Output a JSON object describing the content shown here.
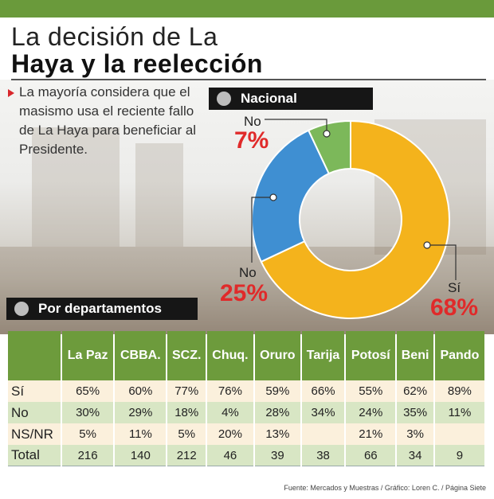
{
  "header": {
    "title_line1": "La decisión de La",
    "title_line2": "Haya y la reelección",
    "lead": "La mayoría considera que el masismo usa el reciente fallo de La Haya para beneficiar al Presidente."
  },
  "colors": {
    "accent": "#6d9b3c",
    "highlight": "#e02a2a",
    "si": "#f4b31c",
    "no_blue": "#3f8fd2",
    "no_green": "#7cb85a"
  },
  "nacional": {
    "label": "Nacional",
    "slices": [
      {
        "label": "Sí",
        "value": 68,
        "pct_text": "68%",
        "color": "#f4b31c"
      },
      {
        "label": "No",
        "value": 25,
        "pct_text": "25%",
        "color": "#3f8fd2"
      },
      {
        "label": "No",
        "value": 7,
        "pct_text": "7%",
        "color": "#7cb85a"
      }
    ]
  },
  "por_departamentos": {
    "label": "Por departamentos",
    "columns": [
      "La Paz",
      "CBBA.",
      "SCZ.",
      "Chuq.",
      "Oruro",
      "Tarija",
      "Potosí",
      "Beni",
      "Pando"
    ],
    "rows": [
      {
        "label": "Sí",
        "values": [
          "65%",
          "60%",
          "77%",
          "76%",
          "59%",
          "66%",
          "55%",
          "62%",
          "89%"
        ]
      },
      {
        "label": "No",
        "values": [
          "30%",
          "29%",
          "18%",
          "4%",
          "28%",
          "34%",
          "24%",
          "35%",
          "11%"
        ]
      },
      {
        "label": "NS/NR",
        "values": [
          "5%",
          "11%",
          "5%",
          "20%",
          "13%",
          "",
          "21%",
          "3%",
          ""
        ]
      },
      {
        "label": "Total",
        "values": [
          "216",
          "140",
          "212",
          "46",
          "39",
          "38",
          "66",
          "34",
          "9"
        ]
      }
    ]
  },
  "chart_data": [
    {
      "type": "pie",
      "title": "Nacional",
      "categories": [
        "Sí",
        "No",
        "No"
      ],
      "values": [
        68,
        25,
        7
      ],
      "colors": [
        "#f4b31c",
        "#3f8fd2",
        "#7cb85a"
      ]
    },
    {
      "type": "table",
      "title": "Por departamentos",
      "categories": [
        "La Paz",
        "CBBA.",
        "SCZ.",
        "Chuq.",
        "Oruro",
        "Tarija",
        "Potosí",
        "Beni",
        "Pando"
      ],
      "series": [
        {
          "name": "Sí",
          "values": [
            65,
            60,
            77,
            76,
            59,
            66,
            55,
            62,
            89
          ]
        },
        {
          "name": "No",
          "values": [
            30,
            29,
            18,
            4,
            28,
            34,
            24,
            35,
            11
          ]
        },
        {
          "name": "NS/NR",
          "values": [
            5,
            11,
            5,
            20,
            13,
            null,
            21,
            3,
            null
          ]
        },
        {
          "name": "Total",
          "values": [
            216,
            140,
            212,
            46,
            39,
            38,
            66,
            34,
            9
          ]
        }
      ]
    }
  ],
  "source": "Fuente: Mercados y Muestras / Gráfico: Loren C. / Página Siete"
}
